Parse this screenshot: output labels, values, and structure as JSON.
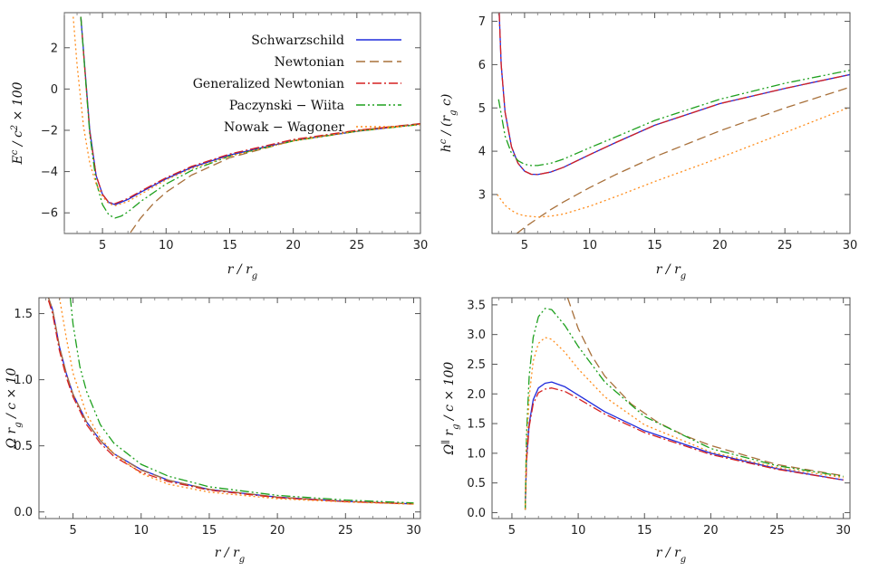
{
  "colors": {
    "schwarzschild": "#1f2bdc",
    "newtonian": "#a8703a",
    "generalized_newtonian": "#d62020",
    "paczynski_wiita": "#1ea01e",
    "nowak_wagoner": "#ff8c1a"
  },
  "legend": [
    {
      "key": "schwarzschild",
      "label": "Schwarzschild",
      "dash": ""
    },
    {
      "key": "newtonian",
      "label": "Newtonian",
      "dash": "10,5"
    },
    {
      "key": "generalized_newtonian",
      "label": "Generalized Newtonian",
      "dash": "10,3,2,3"
    },
    {
      "key": "paczynski_wiita",
      "label": "Paczynski − Wiita",
      "dash": "10,3,2,3,2,3"
    },
    {
      "key": "nowak_wagoner",
      "label": "Nowak − Wagoner",
      "dash": "2,3"
    }
  ],
  "chart_data": [
    {
      "id": "energy",
      "type": "line",
      "title": "",
      "xlabel": "r / r_g",
      "ylabel": "E^c / c^2 × 100",
      "xlim": [
        2,
        30
      ],
      "ylim": [
        -7,
        3.7
      ],
      "xticks": [
        5,
        10,
        15,
        20,
        25,
        30
      ],
      "yticks": [
        2,
        0,
        -2,
        -4,
        -6
      ],
      "xtick_labels": [
        "5",
        "10",
        "15",
        "20",
        "25",
        "30"
      ],
      "ytick_labels": [
        "2",
        "0",
        "−2",
        "−4",
        "−6"
      ],
      "series": [
        {
          "key": "schwarzschild",
          "x": [
            3.3,
            3.6,
            4,
            4.5,
            5,
            5.5,
            6,
            7,
            8,
            10,
            12,
            15,
            20,
            25,
            30
          ],
          "y": [
            3.5,
            1.1,
            -2.0,
            -4.2,
            -5.1,
            -5.5,
            -5.6,
            -5.35,
            -5.0,
            -4.35,
            -3.8,
            -3.2,
            -2.5,
            -2.05,
            -1.7
          ]
        },
        {
          "key": "newtonian",
          "x": [
            7.2,
            8,
            9,
            10,
            12,
            15,
            20,
            25,
            30
          ],
          "y": [
            -6.95,
            -6.25,
            -5.55,
            -5.0,
            -4.17,
            -3.33,
            -2.5,
            -2.0,
            -1.67
          ]
        },
        {
          "key": "generalized_newtonian",
          "x": [
            3.3,
            3.6,
            4,
            4.5,
            5,
            5.5,
            6,
            7,
            8,
            10,
            12,
            15,
            20,
            25,
            30
          ],
          "y": [
            3.5,
            1.0,
            -2.1,
            -4.2,
            -5.1,
            -5.5,
            -5.55,
            -5.3,
            -4.95,
            -4.3,
            -3.75,
            -3.15,
            -2.45,
            -2.0,
            -1.68
          ]
        },
        {
          "key": "paczynski_wiita",
          "x": [
            3.3,
            3.6,
            4,
            4.5,
            5,
            5.5,
            6,
            6.5,
            7,
            8,
            10,
            12,
            15,
            20,
            25,
            30
          ],
          "y": [
            3.5,
            1.0,
            -2.2,
            -4.5,
            -5.6,
            -6.1,
            -6.25,
            -6.15,
            -5.95,
            -5.45,
            -4.6,
            -3.95,
            -3.25,
            -2.52,
            -2.05,
            -1.72
          ]
        },
        {
          "key": "nowak_wagoner",
          "x": [
            2.7,
            3,
            3.5,
            4,
            4.5,
            5,
            5.5,
            6,
            7,
            8,
            10,
            12,
            15,
            20,
            25,
            30
          ],
          "y": [
            3.5,
            1.2,
            -1.8,
            -3.6,
            -4.6,
            -5.2,
            -5.55,
            -5.65,
            -5.45,
            -5.1,
            -4.4,
            -3.85,
            -3.25,
            -2.52,
            -2.05,
            -1.72
          ]
        }
      ]
    },
    {
      "id": "angular_momentum",
      "type": "line",
      "title": "",
      "xlabel": "r / r_g",
      "ylabel": "h^c / (r_g c)",
      "xlim": [
        2.5,
        30
      ],
      "ylim": [
        2.1,
        7.2
      ],
      "xticks": [
        5,
        10,
        15,
        20,
        25,
        30
      ],
      "yticks": [
        3,
        4,
        5,
        6,
        7
      ],
      "xtick_labels": [
        "5",
        "10",
        "15",
        "20",
        "25",
        "30"
      ],
      "ytick_labels": [
        "3",
        "4",
        "5",
        "6",
        "7"
      ],
      "series": [
        {
          "key": "schwarzschild",
          "x": [
            3.05,
            3.2,
            3.5,
            4,
            4.5,
            5,
            5.5,
            6,
            7,
            8,
            10,
            12,
            15,
            20,
            25,
            30
          ],
          "y": [
            7.2,
            6.0,
            4.9,
            4.1,
            3.72,
            3.54,
            3.47,
            3.46,
            3.52,
            3.63,
            3.92,
            4.2,
            4.6,
            5.1,
            5.45,
            5.77
          ]
        },
        {
          "key": "newtonian",
          "x": [
            4.4,
            5,
            6,
            7,
            8,
            10,
            12,
            15,
            20,
            25,
            30
          ],
          "y": [
            2.1,
            2.24,
            2.45,
            2.65,
            2.83,
            3.16,
            3.46,
            3.87,
            4.47,
            5.0,
            5.48
          ]
        },
        {
          "key": "generalized_newtonian",
          "x": [
            3.05,
            3.2,
            3.5,
            4,
            4.5,
            5,
            5.5,
            6,
            7,
            8,
            10,
            12,
            15,
            20,
            25,
            30
          ],
          "y": [
            7.2,
            6.0,
            4.9,
            4.1,
            3.72,
            3.54,
            3.47,
            3.46,
            3.52,
            3.63,
            3.92,
            4.2,
            4.6,
            5.1,
            5.45,
            5.77
          ]
        },
        {
          "key": "paczynski_wiita",
          "x": [
            3,
            3.5,
            4,
            4.5,
            5,
            5.5,
            6,
            7,
            8,
            10,
            12,
            15,
            20,
            25,
            30
          ],
          "y": [
            5.2,
            4.35,
            3.95,
            3.78,
            3.7,
            3.67,
            3.67,
            3.72,
            3.82,
            4.08,
            4.33,
            4.71,
            5.2,
            5.57,
            5.87
          ]
        },
        {
          "key": "nowak_wagoner",
          "x": [
            2.9,
            3.5,
            4,
            4.5,
            5,
            6,
            7,
            8,
            10,
            12,
            15,
            20,
            25,
            30
          ],
          "y": [
            3.0,
            2.75,
            2.63,
            2.55,
            2.51,
            2.48,
            2.5,
            2.55,
            2.73,
            2.95,
            3.3,
            3.85,
            4.43,
            5.02
          ]
        }
      ]
    },
    {
      "id": "omega",
      "type": "line",
      "title": "",
      "xlabel": "r / r_g",
      "ylabel": "Ω r_g / c × 10",
      "xlim": [
        2.5,
        30.5
      ],
      "ylim": [
        -0.05,
        1.62
      ],
      "xticks": [
        5,
        10,
        15,
        20,
        25,
        30
      ],
      "yticks": [
        0.0,
        0.5,
        1.0,
        1.5
      ],
      "xtick_labels": [
        "5",
        "10",
        "15",
        "20",
        "25",
        "30"
      ],
      "ytick_labels": [
        "0.0",
        "0.5",
        "1.0",
        "1.5"
      ],
      "series": [
        {
          "key": "schwarzschild",
          "x": [
            3.2,
            3.5,
            4,
            4.5,
            5,
            6,
            7,
            8,
            10,
            12,
            15,
            20,
            25,
            30
          ],
          "y": [
            1.62,
            1.53,
            1.25,
            1.05,
            0.89,
            0.68,
            0.54,
            0.44,
            0.32,
            0.24,
            0.17,
            0.112,
            0.08,
            0.061
          ]
        },
        {
          "key": "newtonian",
          "x": [
            3.2,
            3.5,
            4,
            4.5,
            5,
            6,
            7,
            8,
            10,
            12,
            15,
            20,
            25,
            30
          ],
          "y": [
            1.62,
            1.53,
            1.25,
            1.05,
            0.89,
            0.68,
            0.54,
            0.44,
            0.316,
            0.24,
            0.172,
            0.112,
            0.08,
            0.061
          ]
        },
        {
          "key": "generalized_newtonian",
          "x": [
            3.2,
            3.5,
            4,
            4.5,
            5,
            6,
            7,
            8,
            10,
            12,
            15,
            20,
            25,
            30
          ],
          "y": [
            1.6,
            1.5,
            1.22,
            1.02,
            0.87,
            0.66,
            0.52,
            0.42,
            0.3,
            0.23,
            0.165,
            0.108,
            0.078,
            0.06
          ]
        },
        {
          "key": "paczynski_wiita",
          "x": [
            4.8,
            5,
            5.5,
            6,
            7,
            8,
            10,
            12,
            15,
            20,
            25,
            30
          ],
          "y": [
            1.62,
            1.42,
            1.1,
            0.91,
            0.66,
            0.52,
            0.36,
            0.27,
            0.19,
            0.125,
            0.09,
            0.068
          ]
        },
        {
          "key": "nowak_wagoner",
          "x": [
            4,
            4.5,
            5,
            6,
            7,
            8,
            10,
            12,
            15,
            20,
            25,
            30
          ],
          "y": [
            1.62,
            1.32,
            1.05,
            0.74,
            0.56,
            0.44,
            0.29,
            0.21,
            0.15,
            0.1,
            0.075,
            0.059
          ]
        }
      ]
    },
    {
      "id": "omega_parallel",
      "type": "line",
      "title": "",
      "xlabel": "r / r_g",
      "ylabel": "Ω^∥ r_g / c × 100",
      "xlim": [
        3.5,
        30.5
      ],
      "ylim": [
        -0.1,
        3.62
      ],
      "xticks": [
        5,
        10,
        15,
        20,
        25,
        30
      ],
      "yticks": [
        0.0,
        0.5,
        1.0,
        1.5,
        2.0,
        2.5,
        3.0,
        3.5
      ],
      "xtick_labels": [
        "5",
        "10",
        "15",
        "20",
        "25",
        "30"
      ],
      "ytick_labels": [
        "0.0",
        "0.5",
        "1.0",
        "1.5",
        "2.0",
        "2.5",
        "3.0",
        "3.5"
      ],
      "series": [
        {
          "key": "schwarzschild",
          "x": [
            6.0,
            6.1,
            6.3,
            6.6,
            7,
            7.5,
            8,
            9,
            10,
            12,
            15,
            20,
            25,
            30
          ],
          "y": [
            0.05,
            0.9,
            1.5,
            1.9,
            2.1,
            2.18,
            2.2,
            2.12,
            1.98,
            1.7,
            1.38,
            1.0,
            0.74,
            0.55
          ]
        },
        {
          "key": "newtonian",
          "x": [
            9.2,
            10,
            11,
            12,
            14,
            16,
            18,
            20,
            25,
            30
          ],
          "y": [
            3.62,
            3.1,
            2.65,
            2.3,
            1.83,
            1.52,
            1.3,
            1.13,
            0.81,
            0.62
          ]
        },
        {
          "key": "generalized_newtonian",
          "x": [
            6.0,
            6.1,
            6.3,
            6.6,
            7,
            7.5,
            8,
            9,
            10,
            12,
            15,
            20,
            25,
            30
          ],
          "y": [
            0.05,
            0.85,
            1.45,
            1.83,
            2.02,
            2.08,
            2.1,
            2.04,
            1.92,
            1.66,
            1.35,
            0.98,
            0.73,
            0.55
          ]
        },
        {
          "key": "paczynski_wiita",
          "x": [
            6.0,
            6.1,
            6.3,
            6.6,
            7,
            7.5,
            8,
            9,
            10,
            12,
            15,
            20,
            25,
            30
          ],
          "y": [
            0.05,
            1.3,
            2.3,
            2.95,
            3.3,
            3.44,
            3.42,
            3.15,
            2.8,
            2.2,
            1.62,
            1.08,
            0.79,
            0.61
          ]
        },
        {
          "key": "nowak_wagoner",
          "x": [
            6.0,
            6.1,
            6.3,
            6.6,
            7,
            7.5,
            8,
            9,
            10,
            12,
            15,
            20,
            25,
            30
          ],
          "y": [
            0.05,
            1.1,
            1.95,
            2.55,
            2.85,
            2.95,
            2.92,
            2.7,
            2.42,
            1.95,
            1.48,
            1.02,
            0.76,
            0.59
          ]
        }
      ]
    }
  ]
}
